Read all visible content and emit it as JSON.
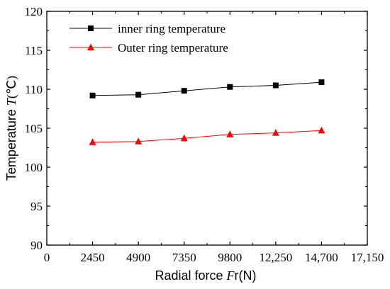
{
  "chart_data": {
    "type": "line",
    "x": [
      2450,
      4900,
      7350,
      9800,
      12250,
      14700
    ],
    "series": [
      {
        "name": "inner ring temperature",
        "values": [
          109.2,
          109.3,
          109.8,
          110.3,
          110.5,
          110.9
        ],
        "color": "#000000",
        "marker": "square"
      },
      {
        "name": "Outer ring temperature",
        "values": [
          103.2,
          103.3,
          103.7,
          104.2,
          104.4,
          104.7
        ],
        "color": "#ff0000",
        "marker": "triangle"
      }
    ],
    "xlim": [
      0,
      17150
    ],
    "ylim": [
      90,
      120
    ],
    "xticks": [
      0,
      2450,
      4900,
      7350,
      9800,
      12250,
      14700,
      17150
    ],
    "xtick_labels": [
      "0",
      "2450",
      "4900",
      "7350",
      "9800",
      "12,250",
      "14,700",
      "17,150"
    ],
    "yticks": [
      90,
      95,
      100,
      105,
      110,
      115,
      120
    ],
    "ytick_labels": [
      "90",
      "95",
      "100",
      "105",
      "110",
      "115",
      "120"
    ],
    "xlabel": {
      "pre": "Radial force ",
      "italic": "F",
      "post": "r(N)"
    },
    "ylabel": {
      "pre": "Temperature ",
      "italic": "T",
      "post": "(℃)"
    },
    "legend_position": "top-left",
    "grid": false
  }
}
